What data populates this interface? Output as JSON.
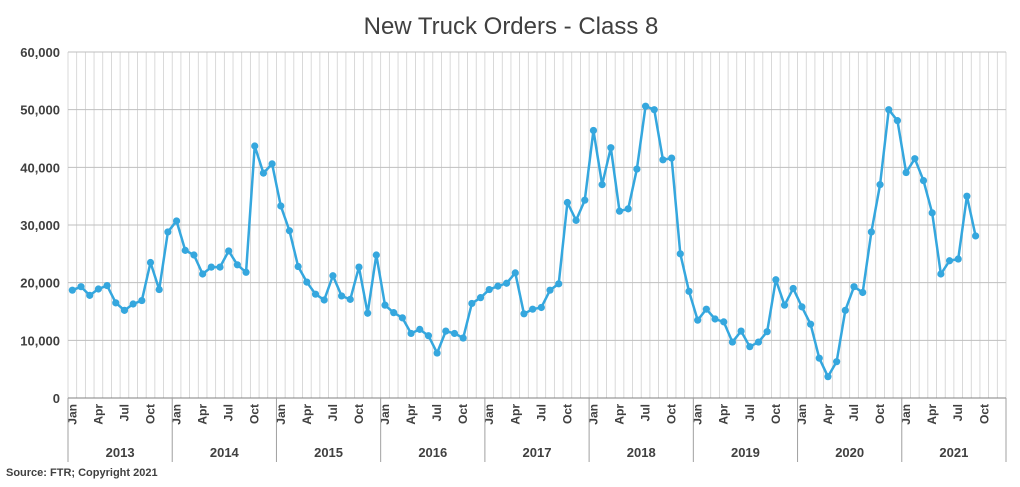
{
  "chart_data": {
    "type": "line",
    "title": "New Truck Orders - Class 8",
    "source": "Source: FTR; Copyright 2021",
    "ylim": [
      0,
      60000
    ],
    "yticks": [
      "0",
      "10,000",
      "20,000",
      "30,000",
      "40,000",
      "50,000",
      "60,000"
    ],
    "month_labels": [
      "Jan",
      "Apr",
      "Jul",
      "Oct"
    ],
    "years": [
      "2013",
      "2014",
      "2015",
      "2016",
      "2017",
      "2018",
      "2019",
      "2020",
      "2021"
    ],
    "grid": true,
    "color": "#35A7DE",
    "series": [
      {
        "values": [
          18700,
          19300,
          17800,
          18900,
          19500,
          16500,
          15200,
          16300,
          16900,
          23500,
          18800,
          28800,
          30700,
          25600,
          24800,
          21500,
          22700,
          22700,
          25500,
          23100,
          21800,
          43700,
          39000,
          40600,
          33300,
          29000,
          22800,
          20100,
          18000,
          17000,
          21200,
          17700,
          17100,
          22700,
          14700,
          24800,
          16100,
          14800,
          13900,
          11200,
          11900,
          10800,
          7800,
          11600,
          11200,
          10400,
          16400,
          17400,
          18800,
          19400,
          19900,
          21700,
          14600,
          15400,
          15700,
          18700,
          19800,
          33900,
          30800,
          34300,
          46400,
          37000,
          43400,
          32400,
          32800,
          39700,
          50600,
          50000,
          41300,
          41600,
          25000,
          18500,
          13500,
          15400,
          13700,
          13200,
          9700,
          11600,
          8900,
          9700,
          11500,
          20500,
          16100,
          19000,
          15800,
          12800,
          6900,
          3700,
          6300,
          15200,
          19300,
          18300,
          28800,
          37000,
          50000,
          48100,
          39100,
          41500,
          37700,
          32100,
          21500,
          23800,
          24100,
          35000,
          28100
        ]
      }
    ]
  }
}
